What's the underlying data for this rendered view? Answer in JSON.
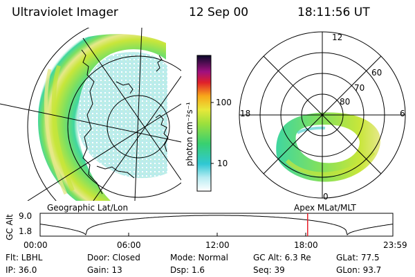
{
  "header": {
    "instrument": "Ultraviolet Imager",
    "date": "12 Sep 00",
    "time": "18:11:56 UT"
  },
  "colorbar": {
    "unit_label": "photon cm⁻²s⁻¹",
    "ticks": [
      "100",
      "10"
    ]
  },
  "geo_panel": {
    "label": "Geographic Lat/Lon"
  },
  "polar_panel": {
    "label": "Apex  MLat/MLT",
    "mlt_labels": [
      "12",
      "18",
      "6",
      "0"
    ],
    "lat_labels": [
      "60",
      "70",
      "80"
    ]
  },
  "altitude_plot": {
    "ylabel": "GC Alt",
    "y_ticks": [
      "9.0",
      "1.8"
    ],
    "x_ticks": [
      "00:00",
      "06:00",
      "12:00",
      "18:00",
      "23:59"
    ],
    "y_range": [
      1.8,
      9.0
    ],
    "orbit_hours": [
      0,
      3.1,
      9.0,
      15.0,
      20.9,
      24
    ],
    "current_time_hours": 18.2
  },
  "info": {
    "flt": "Flt: LBHL",
    "ip": "IP: 36.0",
    "door": "Door: Closed",
    "gain": "Gain: 13",
    "mode": "Mode: Normal",
    "dsp": "Dsp:    1.6",
    "gc_alt": "GC Alt: 6.3 Re",
    "seq": "Seq: 39",
    "glat": "GLat:   77.5",
    "glon": "GLon:   93.7"
  },
  "colors": {
    "marker": "#e8202a",
    "line": "#000000",
    "aurora_outer": "#3fd6a0",
    "aurora_mid": "#7ee060",
    "aurora_bright": "#c8e63a",
    "aurora_peak": "#e6e88a"
  }
}
